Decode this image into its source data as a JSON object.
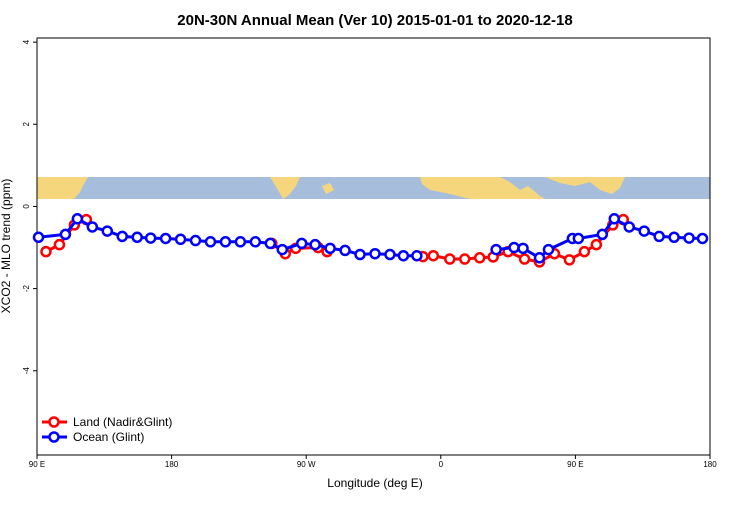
{
  "chart_data": {
    "type": "line",
    "title": "20N-30N Annual Mean (Ver 10)   2015-01-01 to 2020-12-18",
    "x_label": "Longitude (deg E)",
    "y_label": "XCO2 - MLO trend (ppm)",
    "xlim": [
      90,
      540
    ],
    "xticks": [
      {
        "value": 90,
        "label": "90 E"
      },
      180,
      {
        "value": 270,
        "label": "90 W"
      },
      {
        "value": 360,
        "label": "0"
      },
      {
        "value": 450,
        "label": "90 E"
      },
      {
        "value": 540,
        "label": "180"
      }
    ],
    "ylim": [
      -6.05,
      4.1
    ],
    "yticks": [
      -4,
      -2,
      0,
      2,
      4
    ],
    "legend": "bottom-left",
    "series": [
      {
        "name": "Land (Nadir&Glint)",
        "color": "#ff0000",
        "x": [
          96,
          105,
          115,
          123,
          190,
          247,
          256,
          263,
          278,
          284,
          320,
          348,
          355,
          366,
          376,
          386,
          395,
          405,
          416,
          426,
          436,
          446,
          456,
          464,
          475,
          482
        ],
        "values": [
          -1.1,
          -0.93,
          -0.45,
          -0.32,
          null,
          -0.9,
          -1.15,
          -1.02,
          -1.0,
          -1.1,
          null,
          -1.22,
          -1.2,
          -1.28,
          -1.28,
          -1.25,
          -1.23,
          -1.1,
          -1.28,
          -1.35,
          -1.15,
          -1.3,
          -1.1,
          -0.93,
          -0.45,
          -0.32
        ]
      },
      {
        "name": "Ocean (Glint)",
        "color": "#0000ff",
        "x": [
          91,
          109,
          117,
          127,
          137,
          147,
          157,
          166,
          176,
          186,
          196,
          206,
          216,
          226,
          236,
          246,
          254,
          267,
          276,
          286,
          296,
          306,
          316,
          326,
          335,
          344,
          380,
          397,
          409,
          415,
          426,
          432,
          448,
          452,
          468,
          476,
          486,
          496,
          506,
          516,
          526,
          535
        ],
        "values": [
          -0.75,
          -0.68,
          -0.3,
          -0.5,
          -0.6,
          -0.73,
          -0.75,
          -0.77,
          -0.78,
          -0.8,
          -0.83,
          -0.86,
          -0.86,
          -0.86,
          -0.86,
          -0.9,
          -1.05,
          -0.9,
          -0.93,
          -1.02,
          -1.07,
          -1.17,
          -1.15,
          -1.17,
          -1.2,
          -1.2,
          null,
          -1.05,
          -1.0,
          -1.02,
          -1.25,
          -1.05,
          -0.78,
          -0.78,
          -0.68,
          -0.3,
          -0.5,
          -0.6,
          -0.73,
          -0.75,
          -0.77,
          -0.78
        ]
      }
    ]
  }
}
